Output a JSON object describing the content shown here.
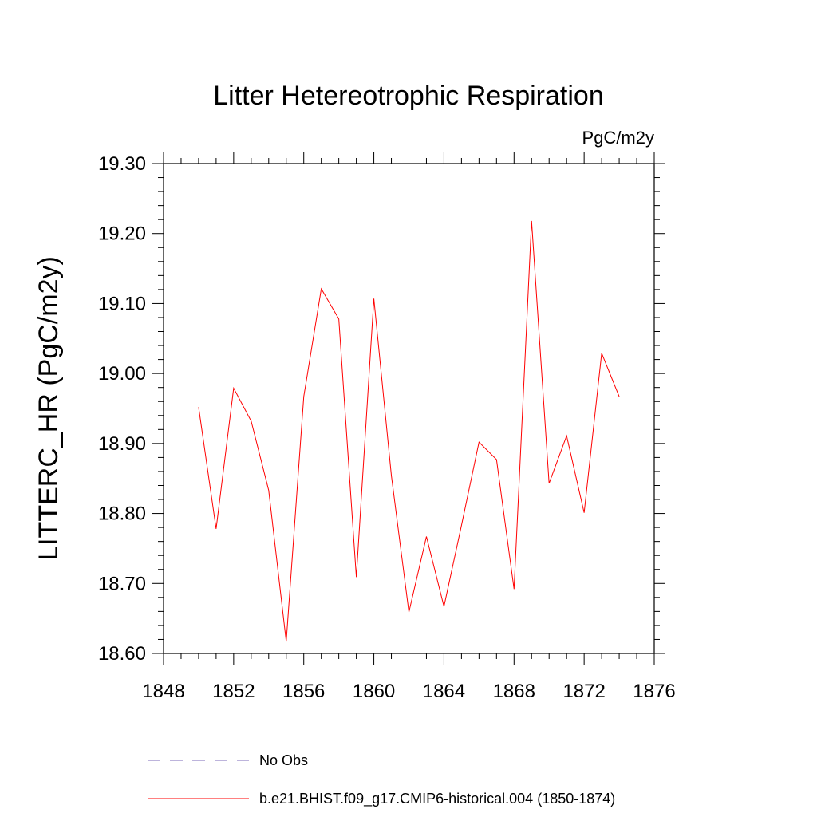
{
  "chart_data": {
    "type": "line",
    "title": "Litter Hetereotrophic Respiration",
    "units": "PgC/m2y",
    "xlabel": "",
    "ylabel": "LITTERC_HR  (PgC/m2y)",
    "xlim": [
      1848,
      1876
    ],
    "ylim": [
      18.6,
      19.3
    ],
    "x_ticks": [
      1848,
      1852,
      1856,
      1860,
      1864,
      1868,
      1872,
      1876
    ],
    "x_tick_labels": [
      "1848",
      "1852",
      "1856",
      "1860",
      "1864",
      "1868",
      "1872",
      "1876"
    ],
    "y_ticks": [
      18.6,
      18.7,
      18.8,
      18.9,
      19.0,
      19.1,
      19.2,
      19.3
    ],
    "y_tick_labels": [
      "18.60",
      "18.70",
      "18.80",
      "18.90",
      "19.00",
      "19.10",
      "19.20",
      "19.30"
    ],
    "grid": false,
    "legend_position": "bottom",
    "series": [
      {
        "name": "b.e21.BHIST.f09_g17.CMIP6-historical.004 (1850-1874)",
        "color": "#ff0000",
        "style": "solid",
        "x": [
          1850,
          1851,
          1852,
          1853,
          1854,
          1855,
          1856,
          1857,
          1858,
          1859,
          1860,
          1861,
          1862,
          1863,
          1864,
          1865,
          1866,
          1867,
          1868,
          1869,
          1870,
          1871,
          1872,
          1873,
          1874
        ],
        "y": [
          18.952,
          18.778,
          18.979,
          18.932,
          18.833,
          18.617,
          18.967,
          19.121,
          19.078,
          18.709,
          19.107,
          18.854,
          18.659,
          18.767,
          18.667,
          18.783,
          18.902,
          18.877,
          18.692,
          19.218,
          18.843,
          18.911,
          18.801,
          19.029,
          18.967
        ]
      }
    ],
    "legend": [
      {
        "label": "No Obs",
        "color": "#7b68b8",
        "style": "dashed"
      },
      {
        "label": "b.e21.BHIST.f09_g17.CMIP6-historical.004 (1850-1874)",
        "color": "#ff0000",
        "style": "solid"
      }
    ]
  }
}
